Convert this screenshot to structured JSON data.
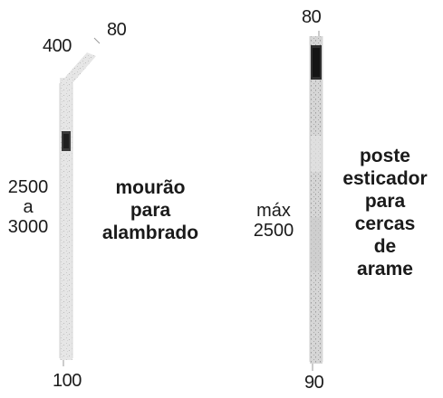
{
  "mourao": {
    "top_dimension": "400",
    "tip_dimension": "80",
    "length_line1": "2500",
    "length_line2": "a",
    "length_line3": "3000",
    "bottom_dimension": "100",
    "caption_line1": "mourão",
    "caption_line2": "para",
    "caption_line3": "alambrado"
  },
  "poste": {
    "top_dimension": "80",
    "length_line1": "máx",
    "length_line2": "2500",
    "bottom_dimension": "90",
    "caption_line1": "poste",
    "caption_line2": "esticador",
    "caption_line3": "para",
    "caption_line4": "cercas",
    "caption_line5": "de",
    "caption_line6": "arame"
  }
}
